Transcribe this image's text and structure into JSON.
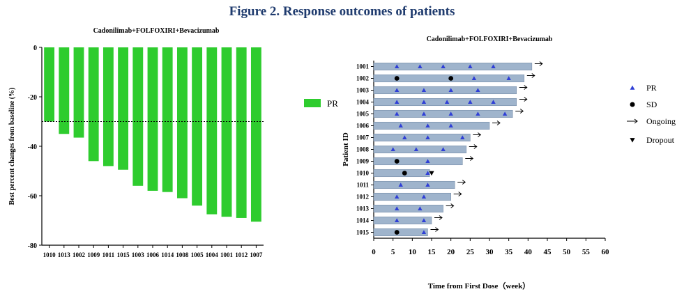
{
  "figure_title": "Figure 2. Response outcomes of patients",
  "colors": {
    "title": "#1f3b6e",
    "pr_bar": "#2ecc2e",
    "swim_bar": "#9fb4cc",
    "swim_bar_edge": "#6f86a3",
    "pr_marker": "#2f3fd6",
    "sd_marker": "#000000",
    "axis": "#000000"
  },
  "chart_data": [
    {
      "type": "bar",
      "title": "Cadonilimab+FOLFOXIRI+Bevacizumab",
      "ylabel": "Best percent changes from baseline (%)",
      "xlabel": "",
      "ylim": [
        -80,
        0
      ],
      "yticks": [
        0,
        -20,
        -40,
        -60,
        -80
      ],
      "reference_line": -30,
      "grid": false,
      "legend_position": "right",
      "categories": [
        "1010",
        "1013",
        "1002",
        "1009",
        "1011",
        "1015",
        "1003",
        "1006",
        "1014",
        "1008",
        "1005",
        "1004",
        "1001",
        "1012",
        "1007"
      ],
      "series": [
        {
          "name": "PR",
          "values": [
            -30,
            -35,
            -36.5,
            -46,
            -48,
            -49.5,
            -56,
            -58,
            -58.5,
            -61,
            -64,
            -67.5,
            -68.5,
            -69,
            -70.5
          ]
        }
      ]
    },
    {
      "type": "swimmer",
      "title": "Cadonilimab+FOLFOXIRI+Bevacizumab",
      "xlabel": "Time from First Dose（week）",
      "ylabel": "Patient ID",
      "xlim": [
        0,
        60
      ],
      "xticks": [
        0,
        5,
        10,
        15,
        20,
        25,
        30,
        35,
        40,
        45,
        50,
        55,
        60
      ],
      "legend_position": "right",
      "legend": [
        {
          "symbol": "triangle-up",
          "label": "PR"
        },
        {
          "symbol": "circle",
          "label": "SD"
        },
        {
          "symbol": "arrow",
          "label": "Ongoing"
        },
        {
          "symbol": "triangle-down",
          "label": "Dropout"
        }
      ],
      "patients": [
        {
          "id": "1001",
          "duration": 41,
          "ongoing": true,
          "pr": [
            6,
            12,
            18,
            25,
            31
          ],
          "sd": [],
          "dropout": null
        },
        {
          "id": "1002",
          "duration": 39,
          "ongoing": true,
          "pr": [
            26,
            35
          ],
          "sd": [
            6,
            20
          ],
          "dropout": null
        },
        {
          "id": "1003",
          "duration": 37,
          "ongoing": true,
          "pr": [
            6,
            13,
            20,
            27
          ],
          "sd": [],
          "dropout": null
        },
        {
          "id": "1004",
          "duration": 37,
          "ongoing": true,
          "pr": [
            6,
            13,
            19,
            25,
            31
          ],
          "sd": [],
          "dropout": null
        },
        {
          "id": "1005",
          "duration": 36,
          "ongoing": true,
          "pr": [
            6,
            13,
            20,
            27,
            34
          ],
          "sd": [],
          "dropout": null
        },
        {
          "id": "1006",
          "duration": 30,
          "ongoing": true,
          "pr": [
            7,
            14,
            20
          ],
          "sd": [],
          "dropout": null
        },
        {
          "id": "1007",
          "duration": 25,
          "ongoing": true,
          "pr": [
            8,
            14,
            23
          ],
          "sd": [],
          "dropout": null
        },
        {
          "id": "1008",
          "duration": 24,
          "ongoing": true,
          "pr": [
            5,
            11,
            18
          ],
          "sd": [],
          "dropout": null
        },
        {
          "id": "1009",
          "duration": 23,
          "ongoing": true,
          "pr": [
            14
          ],
          "sd": [
            6
          ],
          "dropout": null
        },
        {
          "id": "1010",
          "duration": 14.5,
          "ongoing": false,
          "pr": [
            14
          ],
          "sd": [
            8
          ],
          "dropout": 15
        },
        {
          "id": "1011",
          "duration": 21,
          "ongoing": true,
          "pr": [
            7,
            14
          ],
          "sd": [],
          "dropout": null
        },
        {
          "id": "1012",
          "duration": 20,
          "ongoing": true,
          "pr": [
            6,
            13
          ],
          "sd": [],
          "dropout": null
        },
        {
          "id": "1013",
          "duration": 18,
          "ongoing": true,
          "pr": [
            6,
            12
          ],
          "sd": [],
          "dropout": null
        },
        {
          "id": "1014",
          "duration": 15,
          "ongoing": true,
          "pr": [
            6,
            13
          ],
          "sd": [],
          "dropout": null
        },
        {
          "id": "1015",
          "duration": 14,
          "ongoing": true,
          "pr": [
            13
          ],
          "sd": [
            6
          ],
          "dropout": null
        }
      ]
    }
  ]
}
